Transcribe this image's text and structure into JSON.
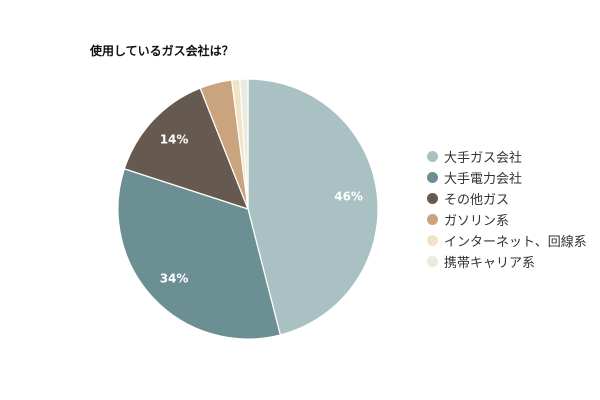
{
  "chart_data": {
    "type": "pie",
    "title": "使用しているガス会社は？",
    "series": [
      {
        "name": "大手ガス会社",
        "value": 46,
        "label": "46%",
        "color": "#a9c1c2"
      },
      {
        "name": "大手電力会社",
        "value": 34,
        "label": "34%",
        "color": "#6c8f93"
      },
      {
        "name": "その他ガス",
        "value": 14,
        "label": "14%",
        "color": "#665a50"
      },
      {
        "name": "ガソリン系",
        "value": 4,
        "label": "",
        "color": "#c9a47e"
      },
      {
        "name": "インターネット、回線系",
        "value": 1,
        "label": "",
        "color": "#f1e3c7"
      },
      {
        "name": "携帯キャリア系",
        "value": 1,
        "label": "",
        "color": "#e9ebde"
      }
    ],
    "legend_position": "right"
  }
}
